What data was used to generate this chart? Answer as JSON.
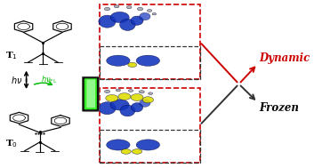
{
  "bg_color": "#ffffff",
  "fig_width": 3.62,
  "fig_height": 1.89,
  "dpi": 100,
  "t1_label": "T$_1$",
  "t0_label": "T$_0$",
  "hv_label": "$h\\nu$",
  "hvfl_label": "$h\\nu_{\\mathrm{FL}}$",
  "dynamic_label": "Dynamic",
  "frozen_label": "Frozen",
  "dynamic_color": "#cc0000",
  "frozen_color": "#000000",
  "arrow_green_color": "#00bb00",
  "red_dashed_color": "#cc0000",
  "black_dashed_color": "#333333"
}
